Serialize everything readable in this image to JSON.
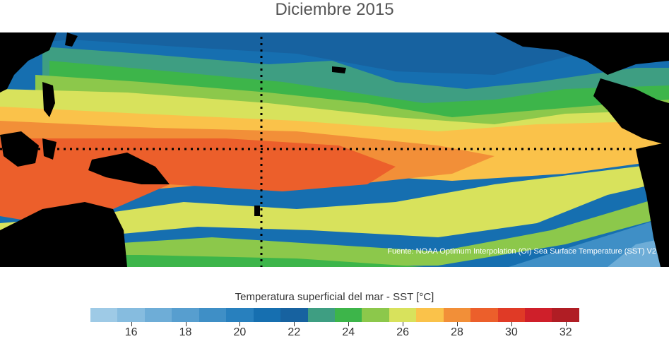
{
  "title": "Diciembre 2015",
  "source": "Fuente: NOAA Optimum Interpolation (OI) Sea Surface Temperature (SST) V2",
  "colorbar": {
    "label": "Temperatura superficial del mar - SST  [°C]",
    "min": 15,
    "max": 33,
    "step": 1,
    "ticks": [
      "16",
      "18",
      "20",
      "22",
      "24",
      "26",
      "28",
      "30",
      "32"
    ],
    "colors": [
      "#9ecae6",
      "#86bcdf",
      "#6eadd7",
      "#579ecf",
      "#3f8fc6",
      "#2880be",
      "#166fb0",
      "#1762a0",
      "#3e9e82",
      "#3db54a",
      "#8cc84b",
      "#d8e25c",
      "#fac24a",
      "#f28f38",
      "#ec5f2b",
      "#e03a26",
      "#cf1f2a",
      "#b01d24"
    ]
  },
  "map": {
    "land_color": "#000000",
    "reference_lines": "dotted"
  }
}
